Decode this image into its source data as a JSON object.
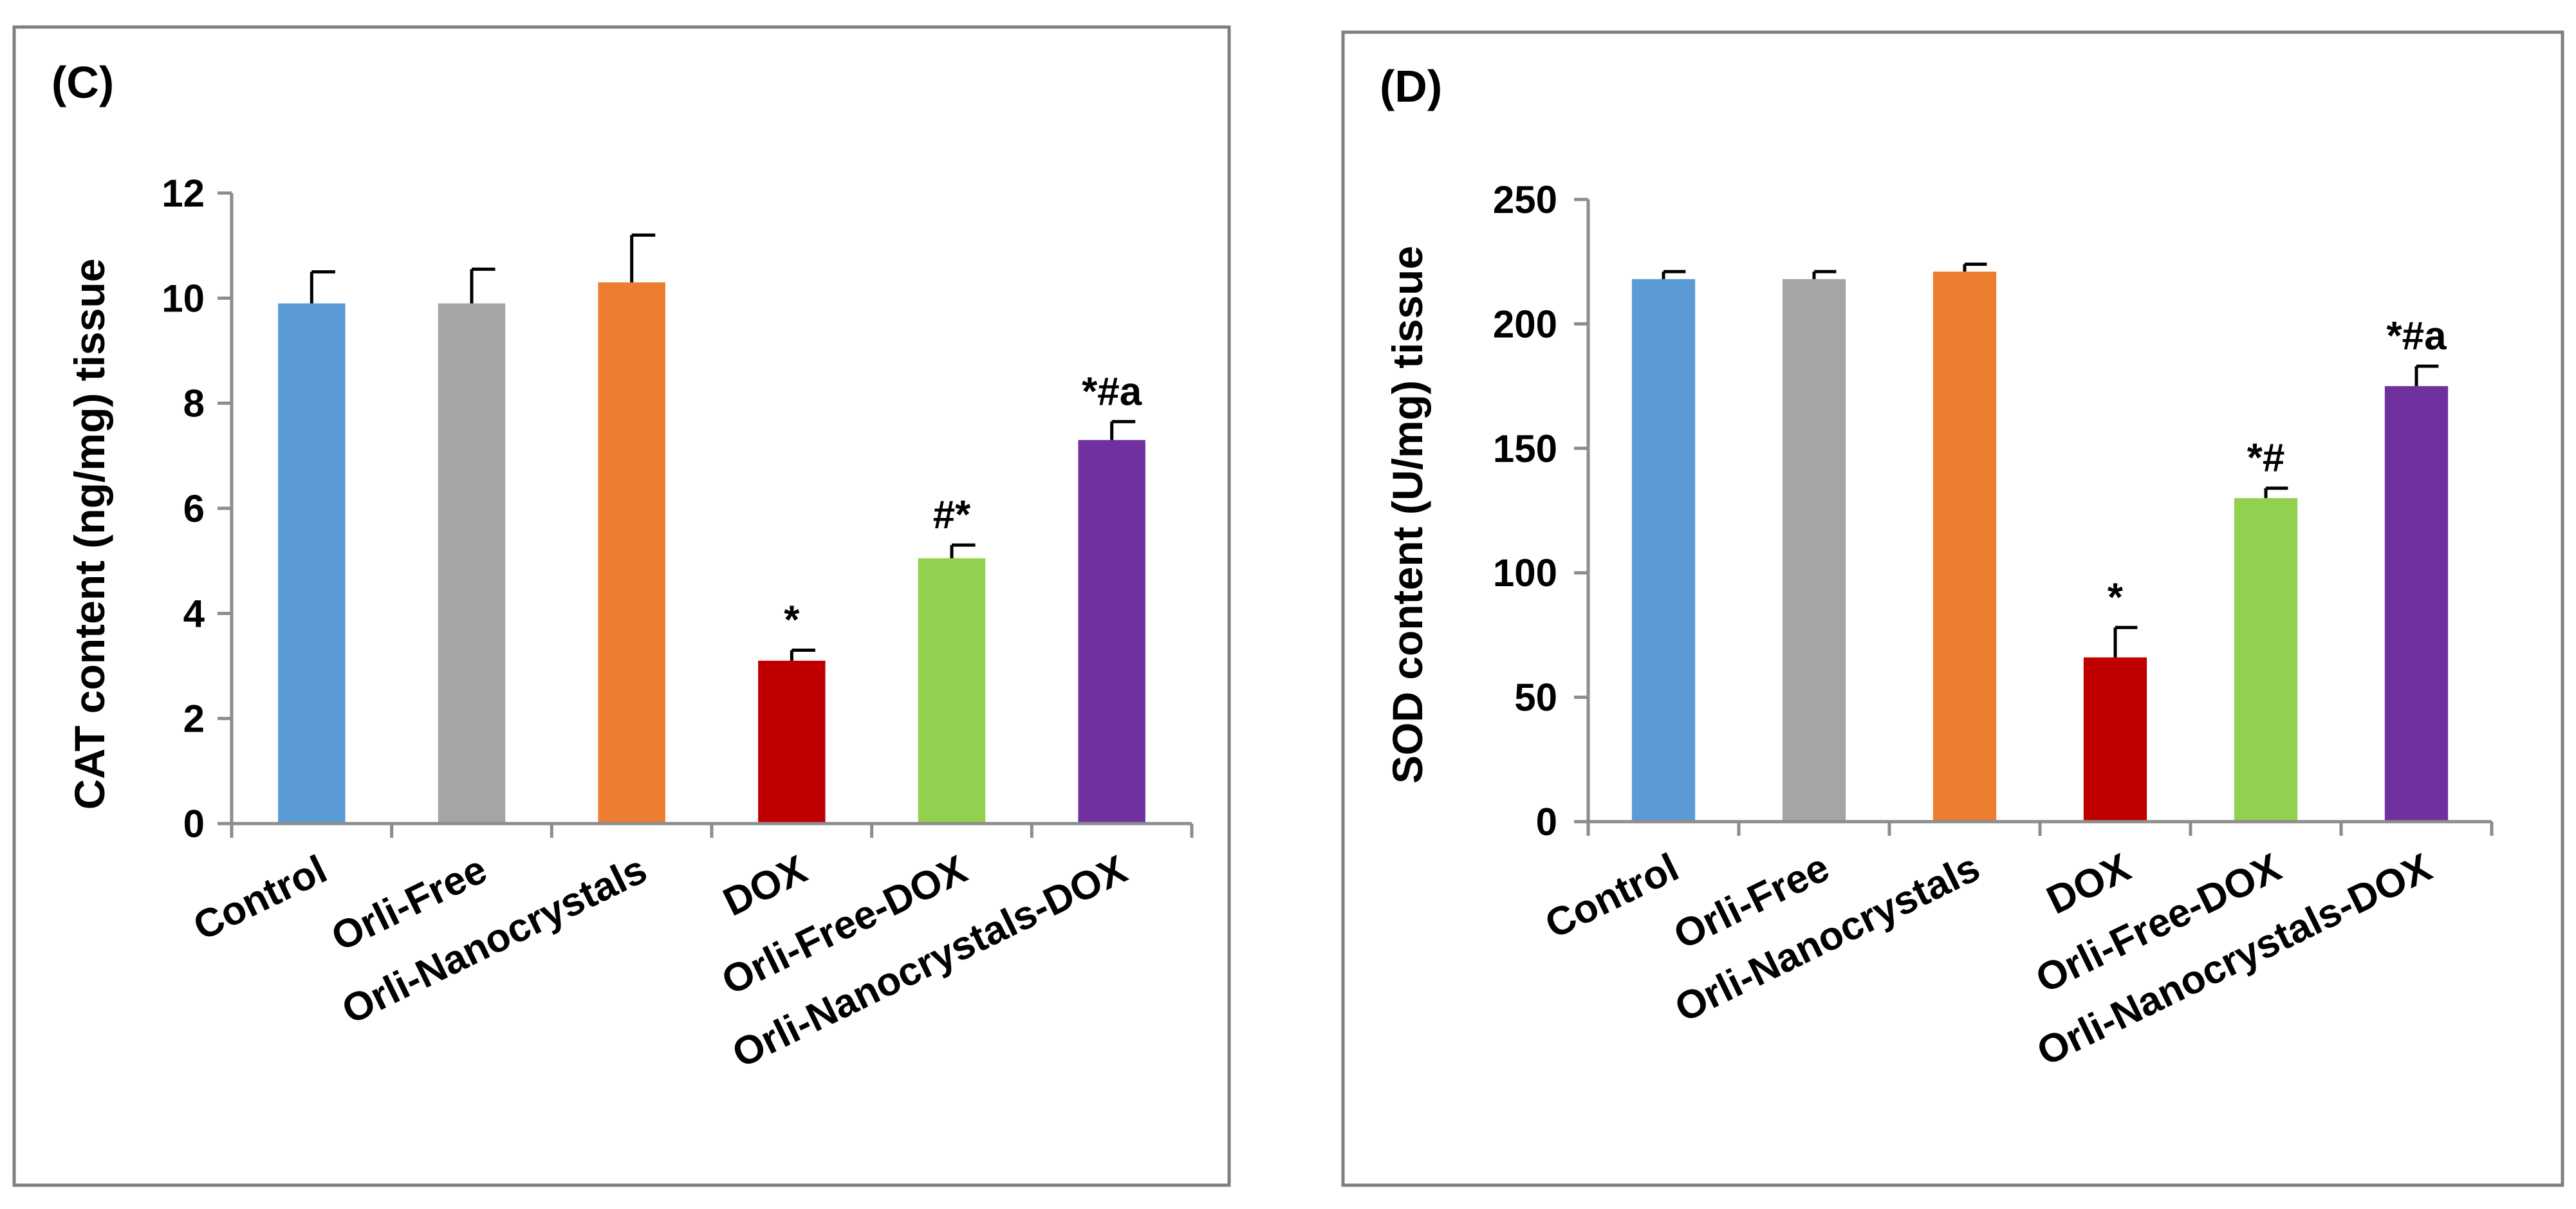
{
  "chart_data": [
    {
      "type": "bar",
      "panel_label": "(C)",
      "categories": [
        "Control",
        "Orli-Free",
        "Orli-Nanocrystals",
        "DOX",
        "Orli-Free-DOX",
        "Orli-Nanocrystals-DOX"
      ],
      "values": [
        9.9,
        9.9,
        10.3,
        3.1,
        5.05,
        7.3
      ],
      "errors": [
        0.6,
        0.65,
        0.9,
        0.2,
        0.25,
        0.35
      ],
      "annotations": [
        "",
        "",
        "",
        "*",
        "#*",
        "*#a"
      ],
      "colors": [
        "#5b9bd5",
        "#a5a5a5",
        "#ed7d31",
        "#c00000",
        "#92d050",
        "#7030a0"
      ],
      "ylabel": "CAT content (ng/mg) tissue",
      "xlabel": "",
      "ylim": [
        0,
        12
      ],
      "yticks": [
        "0",
        "2",
        "4",
        "6",
        "8",
        "10",
        "12"
      ],
      "grid": false
    },
    {
      "type": "bar",
      "panel_label": "(D)",
      "categories": [
        "Control",
        "Orli-Free",
        "Orli-Nanocrystals",
        "DOX",
        "Orli-Free-DOX",
        "Orli-Nanocrystals-DOX"
      ],
      "values": [
        218,
        218,
        221,
        66,
        130,
        175
      ],
      "errors": [
        3,
        3,
        3,
        12,
        4,
        8
      ],
      "annotations": [
        "",
        "",
        "",
        "*",
        "*#",
        "*#a"
      ],
      "colors": [
        "#5b9bd5",
        "#a5a5a5",
        "#ed7d31",
        "#c00000",
        "#92d050",
        "#7030a0"
      ],
      "ylabel": "SOD content (U/mg) tissue",
      "xlabel": "",
      "ylim": [
        0,
        250
      ],
      "yticks": [
        "0",
        "50",
        "100",
        "150",
        "200",
        "250"
      ],
      "grid": false
    }
  ]
}
